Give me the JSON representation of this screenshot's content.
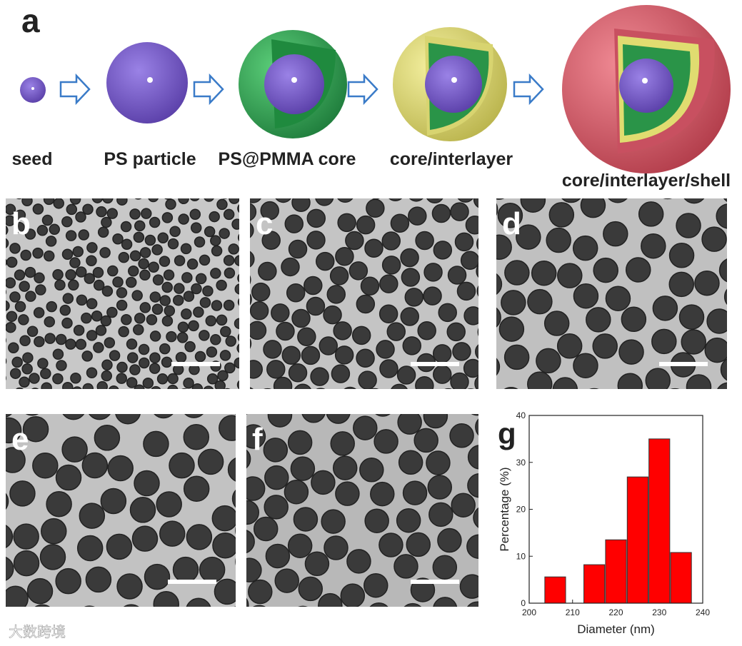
{
  "panel_a": {
    "label": "a",
    "stages": [
      "seed",
      "PS particle",
      "PS@PMMA core",
      "core/interlayer",
      "core/interlayer/shell"
    ]
  },
  "tem_panels": [
    {
      "label": "b"
    },
    {
      "label": "c"
    },
    {
      "label": "d"
    },
    {
      "label": "e"
    },
    {
      "label": "f"
    }
  ],
  "chart_data": {
    "type": "bar",
    "label": "g",
    "xlabel": "Diameter (nm)",
    "ylabel": "Percentage (%)",
    "x": [
      206,
      215,
      220,
      225,
      230,
      235
    ],
    "values": [
      5.6,
      8.2,
      13.5,
      26.9,
      35,
      10.8
    ],
    "color": "#ff0000",
    "xlim": [
      200,
      240
    ],
    "xticks": [
      200,
      210,
      220,
      230,
      240
    ],
    "ylim": [
      0,
      40
    ],
    "yticks": [
      0,
      10,
      20,
      30,
      40
    ]
  },
  "watermark": "大数跨境"
}
